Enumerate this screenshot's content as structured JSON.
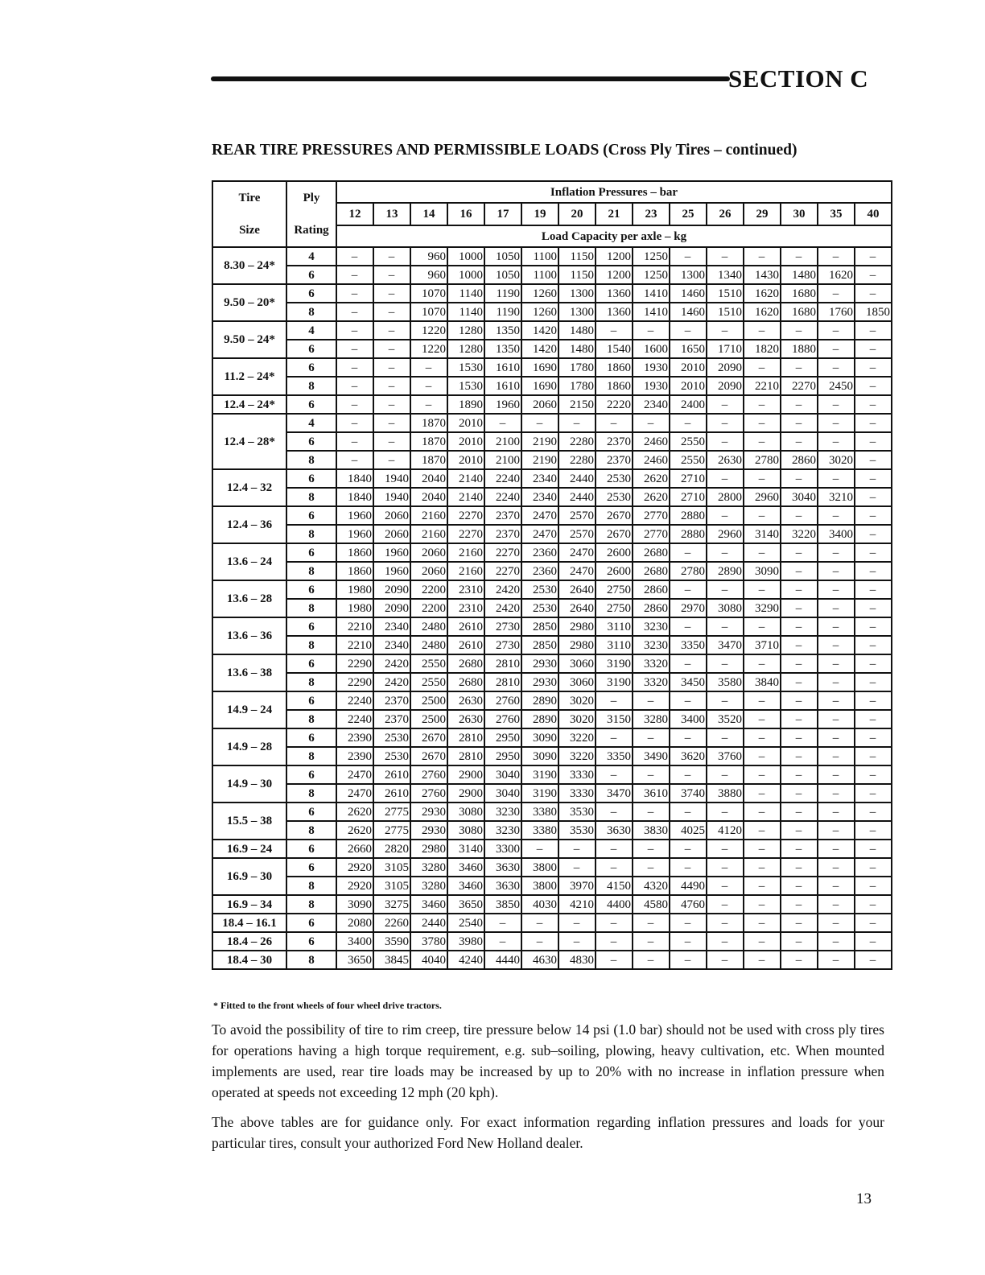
{
  "header": {
    "section": "SECTION C"
  },
  "title": "REAR TIRE PRESSURES AND PERMISSIBLE LOADS (Cross Ply Tires – continued)",
  "table": {
    "col_tire": [
      "Tire",
      "Size"
    ],
    "col_ply": [
      "Ply",
      "Rating"
    ],
    "inflation_label": "Inflation Pressures – bar",
    "load_label": "Load Capacity per axle – kg",
    "pressures": [
      "12",
      "13",
      "14",
      "16",
      "17",
      "19",
      "20",
      "21",
      "23",
      "25",
      "26",
      "29",
      "30",
      "35",
      "40"
    ],
    "groups": [
      {
        "size": "8.30 – 24*",
        "rows": [
          {
            "ply": "4",
            "values": [
              "–",
              "–",
              "960",
              "1000",
              "1050",
              "1100",
              "1150",
              "1200",
              "1250",
              "–",
              "–",
              "–",
              "–",
              "–",
              "–"
            ]
          },
          {
            "ply": "6",
            "values": [
              "–",
              "–",
              "960",
              "1000",
              "1050",
              "1100",
              "1150",
              "1200",
              "1250",
              "1300",
              "1340",
              "1430",
              "1480",
              "1620",
              "–"
            ]
          }
        ]
      },
      {
        "size": "9.50 – 20*",
        "rows": [
          {
            "ply": "6",
            "values": [
              "–",
              "–",
              "1070",
              "1140",
              "1190",
              "1260",
              "1300",
              "1360",
              "1410",
              "1460",
              "1510",
              "1620",
              "1680",
              "–",
              "–"
            ]
          },
          {
            "ply": "8",
            "values": [
              "–",
              "–",
              "1070",
              "1140",
              "1190",
              "1260",
              "1300",
              "1360",
              "1410",
              "1460",
              "1510",
              "1620",
              "1680",
              "1760",
              "1850"
            ]
          }
        ]
      },
      {
        "size": "9.50 – 24*",
        "rows": [
          {
            "ply": "4",
            "values": [
              "–",
              "–",
              "1220",
              "1280",
              "1350",
              "1420",
              "1480",
              "–",
              "–",
              "–",
              "–",
              "–",
              "–",
              "–",
              "–"
            ]
          },
          {
            "ply": "6",
            "values": [
              "–",
              "–",
              "1220",
              "1280",
              "1350",
              "1420",
              "1480",
              "1540",
              "1600",
              "1650",
              "1710",
              "1820",
              "1880",
              "–",
              "–"
            ]
          }
        ]
      },
      {
        "size": "11.2 – 24*",
        "rows": [
          {
            "ply": "6",
            "values": [
              "–",
              "–",
              "–",
              "1530",
              "1610",
              "1690",
              "1780",
              "1860",
              "1930",
              "2010",
              "2090",
              "–",
              "–",
              "–",
              "–"
            ]
          },
          {
            "ply": "8",
            "values": [
              "–",
              "–",
              "–",
              "1530",
              "1610",
              "1690",
              "1780",
              "1860",
              "1930",
              "2010",
              "2090",
              "2210",
              "2270",
              "2450",
              "–"
            ]
          }
        ]
      },
      {
        "size": "12.4 – 24*",
        "rows": [
          {
            "ply": "6",
            "values": [
              "–",
              "–",
              "–",
              "1890",
              "1960",
              "2060",
              "2150",
              "2220",
              "2340",
              "2400",
              "–",
              "–",
              "–",
              "–",
              "–"
            ]
          }
        ]
      },
      {
        "size": "12.4 – 28*",
        "rows": [
          {
            "ply": "4",
            "values": [
              "–",
              "–",
              "1870",
              "2010",
              "–",
              "–",
              "–",
              "–",
              "–",
              "–",
              "–",
              "–",
              "–",
              "–",
              "–"
            ]
          },
          {
            "ply": "6",
            "values": [
              "–",
              "–",
              "1870",
              "2010",
              "2100",
              "2190",
              "2280",
              "2370",
              "2460",
              "2550",
              "–",
              "–",
              "–",
              "–",
              "–"
            ]
          },
          {
            "ply": "8",
            "values": [
              "–",
              "–",
              "1870",
              "2010",
              "2100",
              "2190",
              "2280",
              "2370",
              "2460",
              "2550",
              "2630",
              "2780",
              "2860",
              "3020",
              "–"
            ]
          }
        ]
      },
      {
        "size": "12.4 – 32",
        "rows": [
          {
            "ply": "6",
            "values": [
              "1840",
              "1940",
              "2040",
              "2140",
              "2240",
              "2340",
              "2440",
              "2530",
              "2620",
              "2710",
              "–",
              "–",
              "–",
              "–",
              "–"
            ]
          },
          {
            "ply": "8",
            "values": [
              "1840",
              "1940",
              "2040",
              "2140",
              "2240",
              "2340",
              "2440",
              "2530",
              "2620",
              "2710",
              "2800",
              "2960",
              "3040",
              "3210",
              "–"
            ]
          }
        ]
      },
      {
        "size": "12.4 – 36",
        "rows": [
          {
            "ply": "6",
            "values": [
              "1960",
              "2060",
              "2160",
              "2270",
              "2370",
              "2470",
              "2570",
              "2670",
              "2770",
              "2880",
              "–",
              "–",
              "–",
              "–",
              "–"
            ]
          },
          {
            "ply": "8",
            "values": [
              "1960",
              "2060",
              "2160",
              "2270",
              "2370",
              "2470",
              "2570",
              "2670",
              "2770",
              "2880",
              "2960",
              "3140",
              "3220",
              "3400",
              "–"
            ]
          }
        ]
      },
      {
        "size": "13.6 – 24",
        "rows": [
          {
            "ply": "6",
            "values": [
              "1860",
              "1960",
              "2060",
              "2160",
              "2270",
              "2360",
              "2470",
              "2600",
              "2680",
              "–",
              "–",
              "–",
              "–",
              "–",
              "–"
            ]
          },
          {
            "ply": "8",
            "values": [
              "1860",
              "1960",
              "2060",
              "2160",
              "2270",
              "2360",
              "2470",
              "2600",
              "2680",
              "2780",
              "2890",
              "3090",
              "–",
              "–",
              "–"
            ]
          }
        ]
      },
      {
        "size": "13.6 – 28",
        "rows": [
          {
            "ply": "6",
            "values": [
              "1980",
              "2090",
              "2200",
              "2310",
              "2420",
              "2530",
              "2640",
              "2750",
              "2860",
              "–",
              "–",
              "–",
              "–",
              "–",
              "–"
            ]
          },
          {
            "ply": "8",
            "values": [
              "1980",
              "2090",
              "2200",
              "2310",
              "2420",
              "2530",
              "2640",
              "2750",
              "2860",
              "2970",
              "3080",
              "3290",
              "–",
              "–",
              "–"
            ]
          }
        ]
      },
      {
        "size": "13.6 – 36",
        "rows": [
          {
            "ply": "6",
            "values": [
              "2210",
              "2340",
              "2480",
              "2610",
              "2730",
              "2850",
              "2980",
              "3110",
              "3230",
              "–",
              "–",
              "–",
              "–",
              "–",
              "–"
            ]
          },
          {
            "ply": "8",
            "values": [
              "2210",
              "2340",
              "2480",
              "2610",
              "2730",
              "2850",
              "2980",
              "3110",
              "3230",
              "3350",
              "3470",
              "3710",
              "–",
              "–",
              "–"
            ]
          }
        ]
      },
      {
        "size": "13.6 – 38",
        "rows": [
          {
            "ply": "6",
            "values": [
              "2290",
              "2420",
              "2550",
              "2680",
              "2810",
              "2930",
              "3060",
              "3190",
              "3320",
              "–",
              "–",
              "–",
              "–",
              "–",
              "–"
            ]
          },
          {
            "ply": "8",
            "values": [
              "2290",
              "2420",
              "2550",
              "2680",
              "2810",
              "2930",
              "3060",
              "3190",
              "3320",
              "3450",
              "3580",
              "3840",
              "–",
              "–",
              "–"
            ]
          }
        ]
      },
      {
        "size": "14.9 – 24",
        "rows": [
          {
            "ply": "6",
            "values": [
              "2240",
              "2370",
              "2500",
              "2630",
              "2760",
              "2890",
              "3020",
              "–",
              "–",
              "–",
              "–",
              "–",
              "–",
              "–",
              "–"
            ]
          },
          {
            "ply": "8",
            "values": [
              "2240",
              "2370",
              "2500",
              "2630",
              "2760",
              "2890",
              "3020",
              "3150",
              "3280",
              "3400",
              "3520",
              "–",
              "–",
              "–",
              "–"
            ]
          }
        ]
      },
      {
        "size": "14.9 – 28",
        "rows": [
          {
            "ply": "6",
            "values": [
              "2390",
              "2530",
              "2670",
              "2810",
              "2950",
              "3090",
              "3220",
              "–",
              "–",
              "–",
              "–",
              "–",
              "–",
              "–",
              "–"
            ]
          },
          {
            "ply": "8",
            "values": [
              "2390",
              "2530",
              "2670",
              "2810",
              "2950",
              "3090",
              "3220",
              "3350",
              "3490",
              "3620",
              "3760",
              "–",
              "–",
              "–",
              "–"
            ]
          }
        ]
      },
      {
        "size": "14.9 – 30",
        "rows": [
          {
            "ply": "6",
            "values": [
              "2470",
              "2610",
              "2760",
              "2900",
              "3040",
              "3190",
              "3330",
              "–",
              "–",
              "–",
              "–",
              "–",
              "–",
              "–",
              "–"
            ]
          },
          {
            "ply": "8",
            "values": [
              "2470",
              "2610",
              "2760",
              "2900",
              "3040",
              "3190",
              "3330",
              "3470",
              "3610",
              "3740",
              "3880",
              "–",
              "–",
              "–",
              "–"
            ]
          }
        ]
      },
      {
        "size": "15.5 – 38",
        "rows": [
          {
            "ply": "6",
            "values": [
              "2620",
              "2775",
              "2930",
              "3080",
              "3230",
              "3380",
              "3530",
              "–",
              "–",
              "–",
              "–",
              "–",
              "–",
              "–",
              "–"
            ]
          },
          {
            "ply": "8",
            "values": [
              "2620",
              "2775",
              "2930",
              "3080",
              "3230",
              "3380",
              "3530",
              "3630",
              "3830",
              "4025",
              "4120",
              "–",
              "–",
              "–",
              "–"
            ]
          }
        ]
      },
      {
        "size": "16.9 – 24",
        "rows": [
          {
            "ply": "6",
            "values": [
              "2660",
              "2820",
              "2980",
              "3140",
              "3300",
              "–",
              "–",
              "–",
              "–",
              "–",
              "–",
              "–",
              "–",
              "–",
              "–"
            ]
          }
        ]
      },
      {
        "size": "16.9 – 30",
        "rows": [
          {
            "ply": "6",
            "values": [
              "2920",
              "3105",
              "3280",
              "3460",
              "3630",
              "3800",
              "–",
              "–",
              "–",
              "–",
              "–",
              "–",
              "–",
              "–",
              "–"
            ]
          },
          {
            "ply": "8",
            "values": [
              "2920",
              "3105",
              "3280",
              "3460",
              "3630",
              "3800",
              "3970",
              "4150",
              "4320",
              "4490",
              "–",
              "–",
              "–",
              "–",
              "–"
            ]
          }
        ]
      },
      {
        "size": "16.9 – 34",
        "rows": [
          {
            "ply": "8",
            "values": [
              "3090",
              "3275",
              "3460",
              "3650",
              "3850",
              "4030",
              "4210",
              "4400",
              "4580",
              "4760",
              "–",
              "–",
              "–",
              "–",
              "–"
            ]
          }
        ]
      },
      {
        "size": "18.4 – 16.1",
        "rows": [
          {
            "ply": "6",
            "values": [
              "2080",
              "2260",
              "2440",
              "2540",
              "–",
              "–",
              "–",
              "–",
              "–",
              "–",
              "–",
              "–",
              "–",
              "–",
              "–"
            ]
          }
        ]
      },
      {
        "size": "18.4 – 26",
        "rows": [
          {
            "ply": "6",
            "values": [
              "3400",
              "3590",
              "3780",
              "3980",
              "–",
              "–",
              "–",
              "–",
              "–",
              "–",
              "–",
              "–",
              "–",
              "–",
              "–"
            ]
          }
        ]
      },
      {
        "size": "18.4 – 30",
        "rows": [
          {
            "ply": "8",
            "values": [
              "3650",
              "3845",
              "4040",
              "4240",
              "4440",
              "4630",
              "4830",
              "–",
              "–",
              "–",
              "–",
              "–",
              "–",
              "–",
              "–"
            ]
          }
        ]
      }
    ]
  },
  "footnote": "* Fitted to the front wheels of four wheel drive tractors.",
  "paragraphs": [
    "To avoid the possibility of tire to rim creep, tire pressure below 14 psi (1.0 bar) should not be used with cross ply tires for operations having a high torque requirement, e.g. sub–soiling, plowing, heavy cultivation, etc. When mounted implements are used, rear tire loads may be increased by up to 20% with no increase in inflation pressure when operated at speeds not exceeding 12 mph (20 kph).",
    "The above tables are for guidance only. For exact information regarding inflation pressures and loads for your particular tires, consult your authorized Ford New Holland dealer."
  ],
  "page_number": "13"
}
